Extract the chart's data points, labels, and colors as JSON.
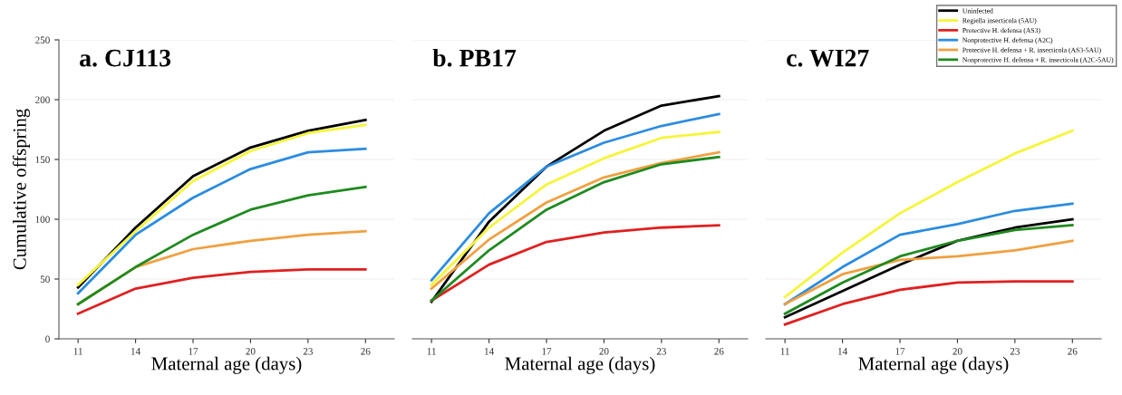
{
  "chart_data": [
    {
      "type": "line",
      "title": "a. CJ113",
      "xlabel": "Maternal age (days)",
      "ylabel": "Cumulative offspring",
      "x": [
        11,
        14,
        17,
        20,
        23,
        26
      ],
      "xlim": [
        10,
        27.5
      ],
      "ylim": [
        0,
        250
      ],
      "xticks": [
        11,
        14,
        17,
        20,
        23,
        26
      ],
      "yticks": [
        0,
        50,
        100,
        150,
        200,
        250
      ],
      "grid": "y",
      "legend": false,
      "marker": "none",
      "line_style": "solid",
      "series": [
        {
          "color": "#000000",
          "values": [
            43,
            93,
            136,
            160,
            174,
            183
          ]
        },
        {
          "color": "#f5f53a",
          "values": [
            45,
            90,
            132,
            157,
            172,
            179
          ]
        },
        {
          "color": "#e02020",
          "values": [
            21,
            42,
            51,
            56,
            58,
            58
          ]
        },
        {
          "color": "#2b8ce0",
          "values": [
            38,
            87,
            118,
            142,
            156,
            159
          ]
        },
        {
          "color": "#f0a040",
          "values": [
            29,
            60,
            75,
            82,
            87,
            90
          ]
        },
        {
          "color": "#1f8a1f",
          "values": [
            29,
            60,
            87,
            108,
            120,
            127
          ]
        }
      ]
    },
    {
      "type": "line",
      "title": "b. PB17",
      "xlabel": "Maternal age (days)",
      "x": [
        11,
        14,
        17,
        20,
        23,
        26
      ],
      "xlim": [
        10,
        27.5
      ],
      "ylim": [
        0,
        250
      ],
      "xticks": [
        11,
        14,
        17,
        20,
        23,
        26
      ],
      "yticks": [
        0,
        50,
        100,
        150,
        200,
        250
      ],
      "tick_labels": "x",
      "grid": "y",
      "legend": false,
      "marker": "none",
      "line_style": "solid",
      "series": [
        {
          "color": "#000000",
          "values": [
            31,
            98,
            144,
            174,
            195,
            203
          ]
        },
        {
          "color": "#f5f53a",
          "values": [
            45,
            93,
            129,
            151,
            168,
            173
          ]
        },
        {
          "color": "#e02020",
          "values": [
            32,
            62,
            81,
            89,
            93,
            95
          ]
        },
        {
          "color": "#2b8ce0",
          "values": [
            49,
            105,
            144,
            164,
            178,
            188
          ]
        },
        {
          "color": "#f0a040",
          "values": [
            42,
            83,
            114,
            135,
            147,
            156
          ]
        },
        {
          "color": "#1f8a1f",
          "values": [
            32,
            74,
            108,
            131,
            146,
            152
          ]
        }
      ]
    },
    {
      "type": "line",
      "title": "c. WI27",
      "xlabel": "Maternal age (days)",
      "x": [
        11,
        14,
        17,
        20,
        23,
        26
      ],
      "xlim": [
        10,
        27.5
      ],
      "ylim": [
        0,
        250
      ],
      "xticks": [
        11,
        14,
        17,
        20,
        23,
        26
      ],
      "yticks": [
        0,
        50,
        100,
        150,
        200,
        250
      ],
      "tick_labels": "x",
      "grid": "y",
      "legend": "top right",
      "marker": "none",
      "line_style": "solid",
      "series": [
        {
          "name": "Uninfected",
          "color": "#000000",
          "values": [
            18,
            40,
            62,
            82,
            93,
            100
          ]
        },
        {
          "name": "Regiella insecticola (5AU)",
          "color": "#f5f53a",
          "values": [
            35,
            72,
            105,
            131,
            155,
            174
          ]
        },
        {
          "name": "Protective H. defensa (AS3)",
          "color": "#e02020",
          "values": [
            12,
            29,
            41,
            47,
            48,
            48
          ]
        },
        {
          "name": "Nonprotective H. defensa (A2C)",
          "color": "#2b8ce0",
          "values": [
            29,
            60,
            87,
            96,
            107,
            113
          ]
        },
        {
          "name": "Protective H. defensa + R. insecticola (AS3-5AU)",
          "color": "#f0a040",
          "values": [
            29,
            54,
            66,
            69,
            74,
            82
          ]
        },
        {
          "name": "Nonprotective H. defensa + R. insecticola (A2C-5AU)",
          "color": "#1f8a1f",
          "values": [
            21,
            47,
            69,
            82,
            91,
            95
          ]
        }
      ]
    }
  ]
}
